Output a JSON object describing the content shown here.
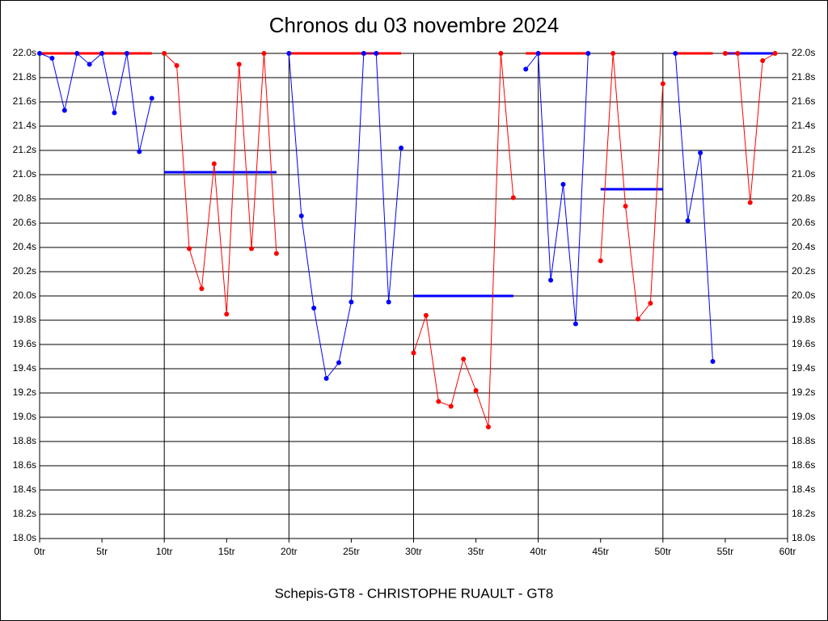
{
  "chart_data": {
    "type": "line",
    "title": "Chronos du 03 novembre 2024",
    "x_label": "Schepis-GT8 - CHRISTOPHE RUAULT - GT8",
    "xlim": [
      0,
      60
    ],
    "ylim": [
      18.0,
      22.0
    ],
    "xticks": [
      {
        "value": 0,
        "label": "0tr"
      },
      {
        "value": 5,
        "label": "5tr"
      },
      {
        "value": 10,
        "label": "10tr"
      },
      {
        "value": 15,
        "label": "15tr"
      },
      {
        "value": 20,
        "label": "20tr"
      },
      {
        "value": 25,
        "label": "25tr"
      },
      {
        "value": 30,
        "label": "30tr"
      },
      {
        "value": 35,
        "label": "35tr"
      },
      {
        "value": 40,
        "label": "40tr"
      },
      {
        "value": 45,
        "label": "45tr"
      },
      {
        "value": 50,
        "label": "50tr"
      },
      {
        "value": 55,
        "label": "55tr"
      },
      {
        "value": 60,
        "label": "60tr"
      }
    ],
    "yticks": [
      {
        "value": 18.0,
        "label": "18.0s"
      },
      {
        "value": 18.2,
        "label": "18.2s"
      },
      {
        "value": 18.4,
        "label": "18.4s"
      },
      {
        "value": 18.6,
        "label": "18.6s"
      },
      {
        "value": 18.8,
        "label": "18.8s"
      },
      {
        "value": 19.0,
        "label": "19.0s"
      },
      {
        "value": 19.2,
        "label": "19.2s"
      },
      {
        "value": 19.4,
        "label": "19.4s"
      },
      {
        "value": 19.6,
        "label": "19.6s"
      },
      {
        "value": 19.8,
        "label": "19.8s"
      },
      {
        "value": 20.0,
        "label": "20.0s"
      },
      {
        "value": 20.2,
        "label": "20.2s"
      },
      {
        "value": 20.4,
        "label": "20.4s"
      },
      {
        "value": 20.6,
        "label": "20.6s"
      },
      {
        "value": 20.8,
        "label": "20.8s"
      },
      {
        "value": 21.0,
        "label": "21.0s"
      },
      {
        "value": 21.2,
        "label": "21.2s"
      },
      {
        "value": 21.4,
        "label": "21.4s"
      },
      {
        "value": 21.6,
        "label": "21.6s"
      },
      {
        "value": 21.8,
        "label": "21.8s"
      },
      {
        "value": 22.0,
        "label": "22.0s"
      }
    ],
    "grid": true,
    "series": [
      {
        "color": "#0000ff",
        "x": [
          0,
          1,
          2,
          3,
          4,
          5,
          6,
          7,
          8,
          9
        ],
        "values": [
          22.0,
          21.96,
          21.53,
          22.0,
          21.91,
          22.0,
          21.51,
          22.0,
          21.19,
          21.63
        ]
      },
      {
        "color": "#ff0000",
        "x": [
          10,
          11,
          12,
          13,
          14,
          15,
          16,
          17,
          18,
          19
        ],
        "values": [
          22.0,
          21.9,
          20.39,
          20.06,
          21.09,
          19.85,
          21.91,
          20.39,
          22.0,
          20.35
        ]
      },
      {
        "color": "#0000ff",
        "x": [
          20,
          21,
          22,
          23,
          24,
          25,
          26,
          27,
          28,
          29
        ],
        "values": [
          22.0,
          20.66,
          19.9,
          19.32,
          19.45,
          19.95,
          22.0,
          22.0,
          19.95,
          21.22
        ]
      },
      {
        "color": "#ff0000",
        "x": [
          30,
          31,
          32,
          33,
          34,
          35,
          36,
          37,
          38
        ],
        "values": [
          19.53,
          19.84,
          19.13,
          19.09,
          19.48,
          19.22,
          18.92,
          22.0,
          20.81
        ]
      },
      {
        "color": "#0000ff",
        "x": [
          39,
          40,
          41,
          42,
          43,
          44
        ],
        "values": [
          21.87,
          22.0,
          20.13,
          20.92,
          19.77,
          22.0
        ]
      },
      {
        "color": "#ff0000",
        "x": [
          45,
          46,
          47,
          48,
          49,
          50
        ],
        "values": [
          20.29,
          22.0,
          20.74,
          19.81,
          19.94,
          21.75
        ]
      },
      {
        "color": "#0000ff",
        "x": [
          51,
          52,
          53,
          54
        ],
        "values": [
          22.0,
          20.62,
          21.18,
          19.46
        ]
      },
      {
        "color": "#ff0000",
        "x": [
          55,
          56,
          57,
          58,
          59
        ],
        "values": [
          22.0,
          22.0,
          20.77,
          21.94,
          22.0
        ]
      }
    ],
    "means": [
      {
        "color": "#ff0000",
        "x": [
          0,
          9
        ],
        "value": 22.0
      },
      {
        "color": "#0000ff",
        "x": [
          10,
          19
        ],
        "value": 21.02
      },
      {
        "color": "#ff0000",
        "x": [
          20,
          29
        ],
        "value": 22.0
      },
      {
        "color": "#0000ff",
        "x": [
          30,
          38
        ],
        "value": 20.0
      },
      {
        "color": "#ff0000",
        "x": [
          39,
          44
        ],
        "value": 22.0
      },
      {
        "color": "#0000ff",
        "x": [
          45,
          50
        ],
        "value": 20.88
      },
      {
        "color": "#ff0000",
        "x": [
          51,
          54
        ],
        "value": 22.0
      },
      {
        "color": "#0000ff",
        "x": [
          55,
          59
        ],
        "value": 22.0
      }
    ]
  }
}
